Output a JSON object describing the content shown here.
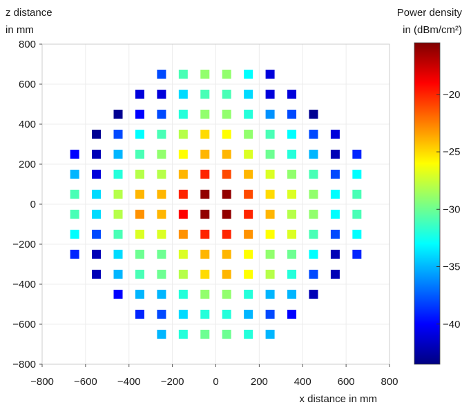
{
  "chart_data": {
    "type": "heatmap",
    "title": "",
    "xlabel": "x distance in mm",
    "ylabel_line1": "z distance",
    "ylabel_line2": "in mm",
    "colorbar_label_line1": "Power density",
    "colorbar_label_line2": "in (dBm/cm²)",
    "xlim": [
      -800,
      800
    ],
    "ylim": [
      -800,
      800
    ],
    "x_ticks": [
      -800,
      -600,
      -400,
      -200,
      0,
      200,
      400,
      600,
      800
    ],
    "y_ticks": [
      -800,
      -600,
      -400,
      -200,
      0,
      200,
      400,
      600,
      800
    ],
    "x_tick_labels": [
      "−800",
      "−600",
      "−400",
      "−200",
      "0",
      "200",
      "400",
      "600",
      "800"
    ],
    "y_tick_labels": [
      "−800",
      "−600",
      "−400",
      "−200",
      "0",
      "200",
      "400",
      "600",
      "800"
    ],
    "grid": true,
    "colorbar": {
      "range": [
        -43.5,
        -15.5
      ],
      "ticks": [
        -20,
        -25,
        -30,
        -35,
        -40
      ],
      "tick_labels": [
        "−20",
        "−25",
        "−30",
        "−35",
        "−40"
      ],
      "colormap": "jet"
    },
    "x": [
      -650,
      -550,
      -450,
      -350,
      -250,
      -150,
      -50,
      50,
      150,
      250,
      350,
      450,
      550,
      650
    ],
    "rows": [
      {
        "z": 650,
        "x": [
          -250,
          -150,
          -50,
          50,
          150,
          250
        ],
        "values": [
          -38,
          -31,
          -29,
          -29,
          -33,
          -41
        ]
      },
      {
        "z": 550,
        "x": [
          -350,
          -250,
          -150,
          -50,
          50,
          150,
          250,
          350
        ],
        "values": [
          -41,
          -41,
          -34,
          -31,
          -31,
          -34,
          -41,
          -41
        ]
      },
      {
        "z": 450,
        "x": [
          -450,
          -350,
          -250,
          -150,
          -50,
          50,
          150,
          250,
          350,
          450
        ],
        "values": [
          -43,
          -40,
          -38,
          -32,
          -29,
          -29,
          -32,
          -36,
          -38,
          -43
        ]
      },
      {
        "z": 350,
        "x": [
          -550,
          -450,
          -350,
          -250,
          -150,
          -50,
          50,
          150,
          250,
          350,
          450,
          550
        ],
        "values": [
          -43,
          -38,
          -33,
          -31,
          -28,
          -25,
          -26,
          -29,
          -31,
          -33,
          -38,
          -41
        ]
      },
      {
        "z": 250,
        "x": [
          -650,
          -550,
          -450,
          -350,
          -250,
          -150,
          -50,
          50,
          150,
          250,
          350,
          450,
          550,
          650
        ],
        "values": [
          -40,
          -42,
          -35,
          -31,
          -29,
          -26,
          -24,
          -24,
          -27,
          -30,
          -32,
          -35,
          -42,
          -39
        ]
      },
      {
        "z": 150,
        "x": [
          -650,
          -550,
          -450,
          -350,
          -250,
          -150,
          -50,
          50,
          150,
          250,
          350,
          450,
          550,
          650
        ],
        "values": [
          -35,
          -41,
          -32,
          -28,
          -28,
          -24,
          -20,
          -21,
          -24,
          -27,
          -29,
          -31,
          -38,
          -33
        ]
      },
      {
        "z": 50,
        "x": [
          -650,
          -550,
          -450,
          -350,
          -250,
          -150,
          -50,
          50,
          150,
          250,
          350,
          450,
          550,
          650
        ],
        "values": [
          -31,
          -34,
          -28,
          -24,
          -24,
          -20,
          -16,
          -16,
          -21,
          -25,
          -27,
          -29,
          -33,
          -31
        ]
      },
      {
        "z": -50,
        "x": [
          -650,
          -550,
          -450,
          -350,
          -250,
          -150,
          -50,
          50,
          150,
          250,
          350,
          450,
          550,
          650
        ],
        "values": [
          -31,
          -34,
          -28,
          -23,
          -24,
          -19,
          -16,
          -16,
          -20,
          -24,
          -28,
          -29,
          -33,
          -31
        ]
      },
      {
        "z": -150,
        "x": [
          -650,
          -550,
          -450,
          -350,
          -250,
          -150,
          -50,
          50,
          150,
          250,
          350,
          450,
          550,
          650
        ],
        "values": [
          -33,
          -38,
          -31,
          -27,
          -27,
          -23,
          -20,
          -20,
          -23,
          -26,
          -27,
          -31,
          -38,
          -33
        ]
      },
      {
        "z": -250,
        "x": [
          -650,
          -550,
          -450,
          -350,
          -250,
          -150,
          -50,
          50,
          150,
          250,
          350,
          450,
          550,
          650
        ],
        "values": [
          -39,
          -42,
          -34,
          -30,
          -30,
          -27,
          -24,
          -24,
          -26,
          -29,
          -30,
          -33,
          -42,
          -39
        ]
      },
      {
        "z": -350,
        "x": [
          -550,
          -450,
          -350,
          -250,
          -150,
          -50,
          50,
          150,
          250,
          350,
          450,
          550
        ],
        "values": [
          -42,
          -35,
          -31,
          -30,
          -28,
          -25,
          -24,
          -26,
          -28,
          -32,
          -38,
          -42
        ]
      },
      {
        "z": -450,
        "x": [
          -450,
          -350,
          -250,
          -150,
          -50,
          50,
          150,
          250,
          350,
          450
        ],
        "values": [
          -40,
          -35,
          -35,
          -32,
          -29,
          -29,
          -32,
          -35,
          -35,
          -42
        ]
      },
      {
        "z": -550,
        "x": [
          -350,
          -250,
          -150,
          -50,
          50,
          150,
          250,
          350
        ],
        "values": [
          -39,
          -38,
          -34,
          -32,
          -32,
          -35,
          -38,
          -40
        ]
      },
      {
        "z": -650,
        "x": [
          -250,
          -150,
          -50,
          50,
          150,
          250
        ],
        "values": [
          -35,
          -32,
          -30,
          -30,
          -32,
          -35
        ]
      }
    ]
  }
}
